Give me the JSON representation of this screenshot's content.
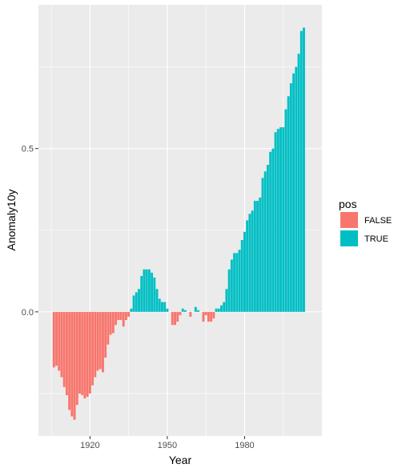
{
  "chart_data": {
    "type": "bar",
    "title": "",
    "xlabel": "Year",
    "ylabel": "Anomaly10y",
    "xlim": [
      1900,
      2010
    ],
    "ylim": [
      -0.38,
      0.94
    ],
    "x_ticks": [
      1920,
      1950,
      1980
    ],
    "y_ticks": [
      0.0,
      0.5
    ],
    "y_tick_labels": [
      "0.0",
      "0.5"
    ],
    "grid": true,
    "legend": {
      "title": "pos",
      "placement": "right",
      "entries": [
        {
          "label": "FALSE",
          "color": "#F8766D"
        },
        {
          "label": "TRUE",
          "color": "#00BFC4"
        }
      ]
    },
    "colors": {
      "FALSE": "#F8766D",
      "TRUE": "#00BFC4",
      "panel": "#EBEBEB"
    },
    "x": [
      1906,
      1907,
      1908,
      1909,
      1910,
      1911,
      1912,
      1913,
      1914,
      1915,
      1916,
      1917,
      1918,
      1919,
      1920,
      1921,
      1922,
      1923,
      1924,
      1925,
      1926,
      1927,
      1928,
      1929,
      1930,
      1931,
      1932,
      1933,
      1934,
      1935,
      1936,
      1937,
      1938,
      1939,
      1940,
      1941,
      1942,
      1943,
      1944,
      1945,
      1946,
      1947,
      1948,
      1949,
      1950,
      1951,
      1952,
      1953,
      1954,
      1955,
      1956,
      1957,
      1958,
      1959,
      1960,
      1961,
      1962,
      1963,
      1964,
      1965,
      1966,
      1967,
      1968,
      1969,
      1970,
      1971,
      1972,
      1973,
      1974,
      1975,
      1976,
      1977,
      1978,
      1979,
      1980,
      1981,
      1982,
      1983,
      1984,
      1985,
      1986,
      1987,
      1988,
      1989,
      1990,
      1991,
      1992,
      1993,
      1994,
      1995,
      1996,
      1997,
      1998,
      1999,
      2000,
      2001,
      2002,
      2003
    ],
    "values": [
      -0.17,
      -0.165,
      -0.18,
      -0.2,
      -0.23,
      -0.255,
      -0.3,
      -0.32,
      -0.33,
      -0.285,
      -0.25,
      -0.255,
      -0.265,
      -0.26,
      -0.25,
      -0.225,
      -0.2,
      -0.18,
      -0.175,
      -0.185,
      -0.14,
      -0.1,
      -0.07,
      -0.065,
      -0.04,
      -0.025,
      -0.025,
      -0.045,
      -0.025,
      -0.015,
      0.01,
      0.05,
      0.06,
      0.07,
      0.11,
      0.13,
      0.13,
      0.13,
      0.12,
      0.105,
      0.07,
      0.04,
      0.03,
      0.03,
      0.01,
      0.0,
      -0.04,
      -0.04,
      -0.03,
      -0.01,
      0.01,
      0.005,
      0.0,
      -0.015,
      0.0,
      0.015,
      0.005,
      0.0,
      -0.03,
      -0.01,
      -0.03,
      -0.03,
      -0.02,
      0.01,
      0.01,
      0.02,
      0.03,
      0.07,
      0.13,
      0.16,
      0.18,
      0.18,
      0.19,
      0.22,
      0.245,
      0.28,
      0.3,
      0.31,
      0.34,
      0.34,
      0.35,
      0.41,
      0.43,
      0.45,
      0.49,
      0.5,
      0.55,
      0.56,
      0.565,
      0.565,
      0.62,
      0.66,
      0.7,
      0.73,
      0.75,
      0.79,
      0.86,
      0.87
    ]
  }
}
